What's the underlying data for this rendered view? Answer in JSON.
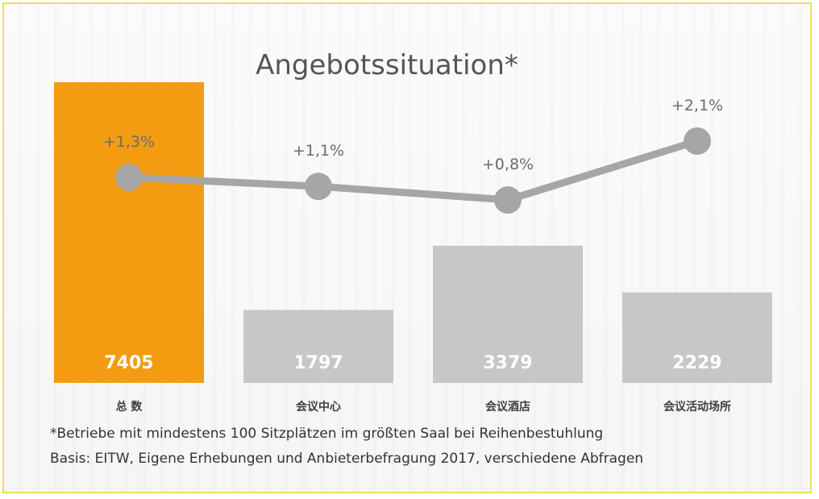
{
  "chart_data": {
    "type": "bar",
    "title": "Angebotssituation*",
    "categories": [
      "总 数",
      "会议中心",
      "会议酒店",
      "会议活动场所"
    ],
    "values": [
      7405,
      1797,
      3379,
      2229
    ],
    "value_labels": [
      "7405",
      "1797",
      "3379",
      "2229"
    ],
    "change_series": {
      "type": "line",
      "values": [
        1.3,
        1.1,
        0.8,
        2.1
      ],
      "labels": [
        "+1,3%",
        "+1,1%",
        "+0,8%",
        "+2,1%"
      ]
    },
    "ylim": [
      0,
      7405
    ],
    "grid": false,
    "colors": {
      "highlight_bar": "#f39c12",
      "bar": "#c7c7c7",
      "line": "#a6a6a6",
      "frame_border": "#f3dc5a"
    }
  },
  "footnotes": {
    "note": "*Betriebe mit mindestens 100 Sitzplätzen im größten Saal bei Reihenbestuhlung",
    "basis": "Basis: EITW, Eigene Erhebungen und Anbieterbefragung 2017, verschiedene Abfragen"
  }
}
